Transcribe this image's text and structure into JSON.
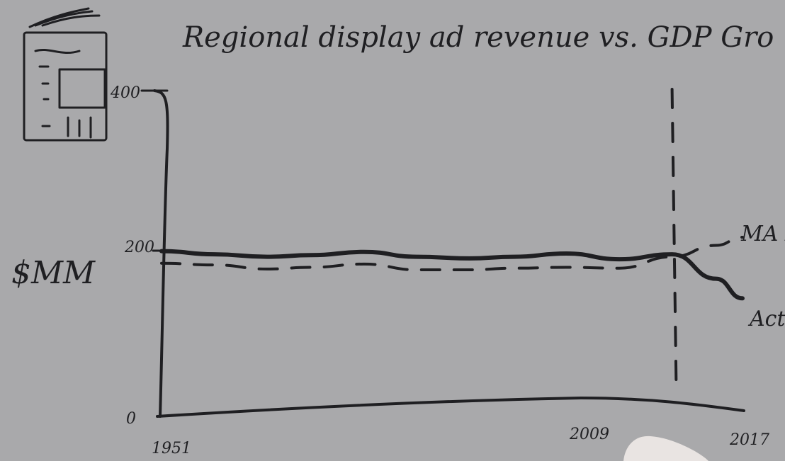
{
  "chart_data": {
    "type": "line",
    "title": "Regional display ad revenue vs. GDP Gro",
    "ylabel": "$MM",
    "xlabel": "",
    "x_ticks": [
      "1951",
      "2009",
      "2017"
    ],
    "y_ticks": [
      "0",
      "200",
      "400"
    ],
    "ylim": [
      0,
      400
    ],
    "xlim": [
      1951,
      2017
    ],
    "event_marker": {
      "x": 2009
    },
    "series": [
      {
        "name": "Actual Fo",
        "style": "solid",
        "x": [
          1951,
          1957,
          1963,
          1968,
          1974,
          1980,
          1986,
          1991,
          1997,
          2003,
          2009,
          2014,
          2017
        ],
        "y": [
          203,
          199,
          196,
          198,
          202,
          196,
          194,
          196,
          200,
          193,
          199,
          169,
          145
        ]
      },
      {
        "name": "MA Fo",
        "style": "dashed",
        "x": [
          1951,
          1957,
          1963,
          1968,
          1974,
          1980,
          1986,
          1991,
          1997,
          2003,
          2009,
          2014,
          2017
        ],
        "y": [
          188,
          186,
          181,
          183,
          187,
          180,
          180,
          182,
          183,
          182,
          196,
          210,
          220
        ]
      }
    ]
  }
}
